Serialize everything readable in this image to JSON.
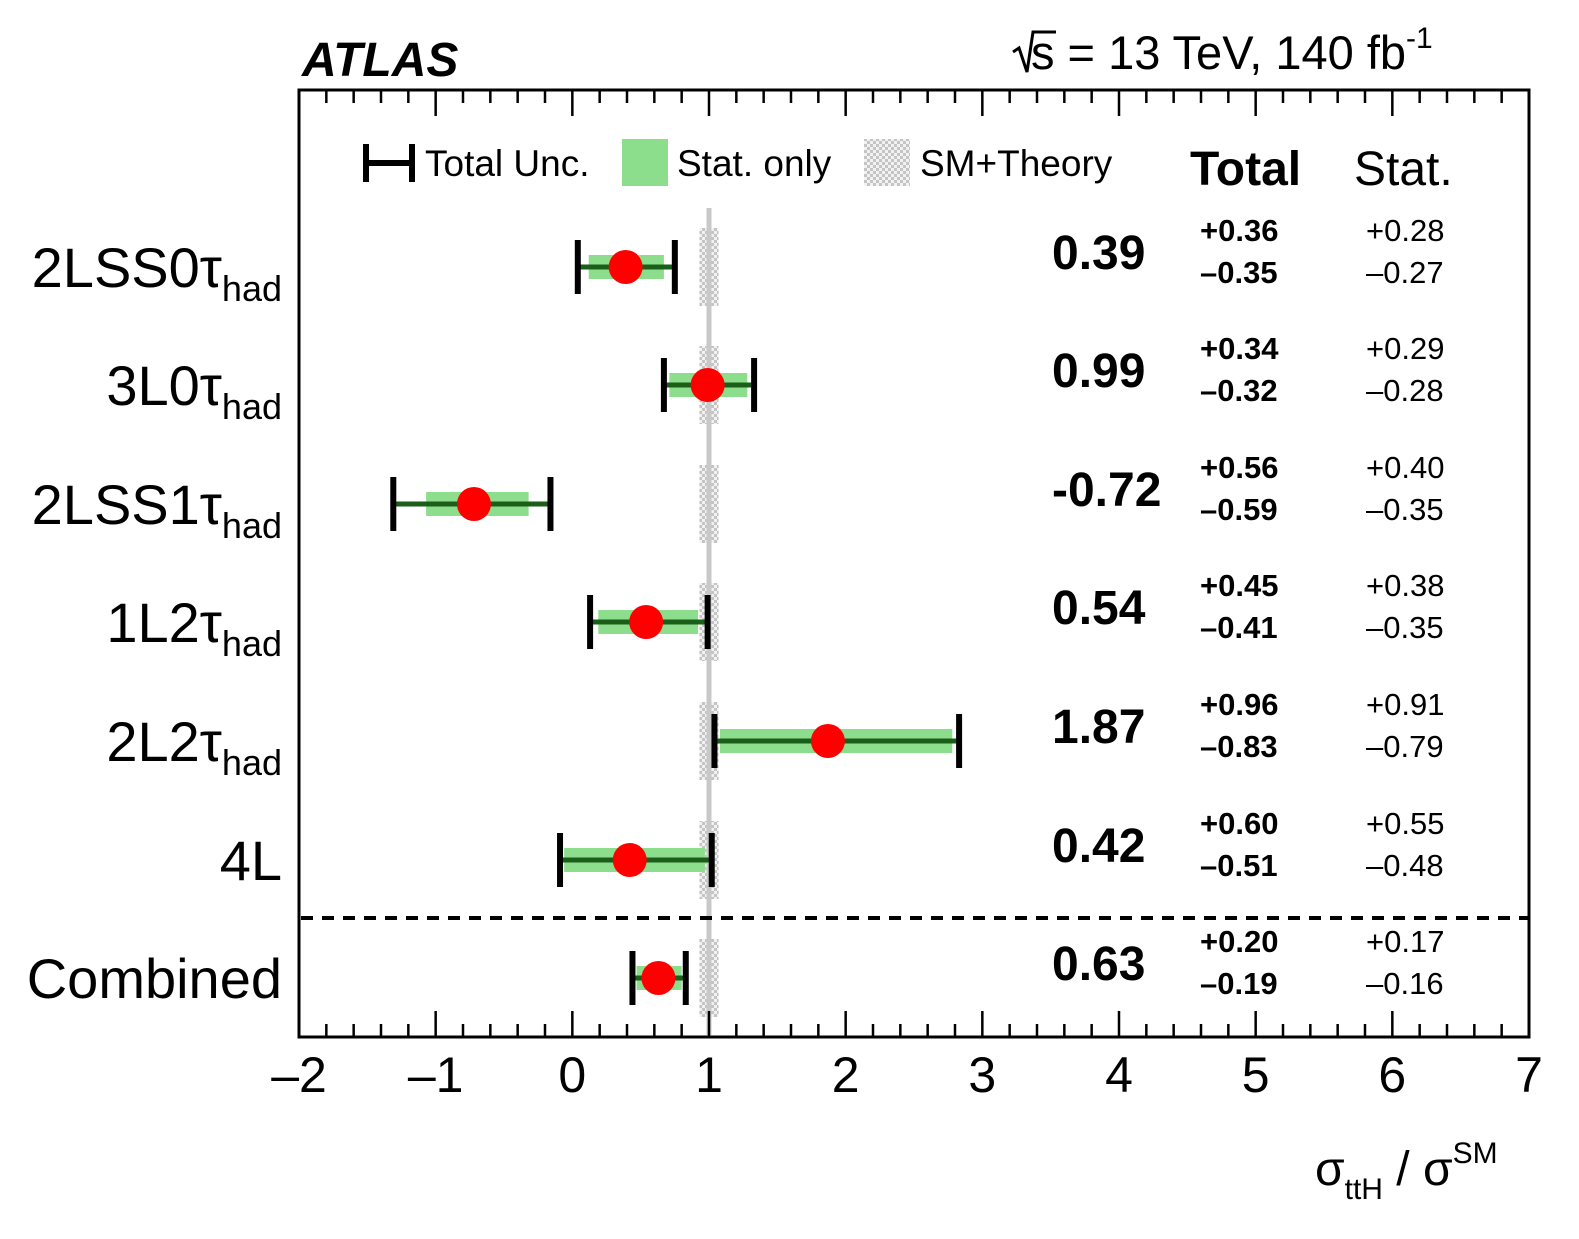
{
  "chart_data": {
    "type": "forest",
    "experiment": "ATLAS",
    "energy_label": {
      "sqrt": "s",
      "rest": " = 13 TeV, 140 fb",
      "sup": "-1"
    },
    "xlabel": {
      "base": "σ",
      "sub": "ttH",
      "sep": " / σ",
      "sup": "SM"
    },
    "xlim": [
      -2,
      7
    ],
    "x_ticks": [
      "–2",
      "–1",
      "0",
      "1",
      "2",
      "3",
      "4",
      "5",
      "6",
      "7"
    ],
    "x_tick_values": [
      -2,
      -1,
      0,
      1,
      2,
      3,
      4,
      5,
      6,
      7
    ],
    "sm_reference": 1,
    "sm_theory_band": [
      0.93,
      1.07
    ],
    "legend": {
      "total": "Total Unc.",
      "stat": "Stat. only",
      "theory": "SM+Theory"
    },
    "column_headers": {
      "total": "Total",
      "stat": "Stat."
    },
    "categories": [
      {
        "base": "2LSS0",
        "tau": "τ",
        "sub": "had",
        "value": 0.39,
        "value_label": "0.39",
        "tot_up": 0.36,
        "tot_dn": 0.35,
        "stat_up": 0.28,
        "stat_dn": 0.27,
        "tot_up_label": "+0.36",
        "tot_dn_label": "–0.35",
        "stat_up_label": "+0.28",
        "stat_dn_label": "–0.27"
      },
      {
        "base": "3L0",
        "tau": "τ",
        "sub": "had",
        "value": 0.99,
        "value_label": "0.99",
        "tot_up": 0.34,
        "tot_dn": 0.32,
        "stat_up": 0.29,
        "stat_dn": 0.28,
        "tot_up_label": "+0.34",
        "tot_dn_label": "–0.32",
        "stat_up_label": "+0.29",
        "stat_dn_label": "–0.28"
      },
      {
        "base": "2LSS1",
        "tau": "τ",
        "sub": "had",
        "value": -0.72,
        "value_label": "-0.72",
        "tot_up": 0.56,
        "tot_dn": 0.59,
        "stat_up": 0.4,
        "stat_dn": 0.35,
        "tot_up_label": "+0.56",
        "tot_dn_label": "–0.59",
        "stat_up_label": "+0.40",
        "stat_dn_label": "–0.35"
      },
      {
        "base": "1L2",
        "tau": "τ",
        "sub": "had",
        "value": 0.54,
        "value_label": "0.54",
        "tot_up": 0.45,
        "tot_dn": 0.41,
        "stat_up": 0.38,
        "stat_dn": 0.35,
        "tot_up_label": "+0.45",
        "tot_dn_label": "–0.41",
        "stat_up_label": "+0.38",
        "stat_dn_label": "–0.35"
      },
      {
        "base": "2L2",
        "tau": "τ",
        "sub": "had",
        "value": 1.87,
        "value_label": "1.87",
        "tot_up": 0.96,
        "tot_dn": 0.83,
        "stat_up": 0.91,
        "stat_dn": 0.79,
        "tot_up_label": "+0.96",
        "tot_dn_label": "–0.83",
        "stat_up_label": "+0.91",
        "stat_dn_label": "–0.79"
      },
      {
        "base": "4L",
        "tau": "",
        "sub": "",
        "value": 0.42,
        "value_label": "0.42",
        "tot_up": 0.6,
        "tot_dn": 0.51,
        "stat_up": 0.55,
        "stat_dn": 0.48,
        "tot_up_label": "+0.60",
        "tot_dn_label": "–0.51",
        "stat_up_label": "+0.55",
        "stat_dn_label": "–0.48"
      },
      {
        "base": "Combined",
        "tau": "",
        "sub": "",
        "value": 0.63,
        "value_label": "0.63",
        "tot_up": 0.2,
        "tot_dn": 0.19,
        "stat_up": 0.17,
        "stat_dn": 0.16,
        "tot_up_label": "+0.20",
        "tot_dn_label": "–0.19",
        "stat_up_label": "+0.17",
        "stat_dn_label": "–0.16"
      }
    ],
    "colors": {
      "point": "#ff0000",
      "stat_band": "#8cde8c",
      "total_line": "#000000",
      "sm_line": "#c8c8c8",
      "theory_band": "#d4d4d4"
    }
  }
}
